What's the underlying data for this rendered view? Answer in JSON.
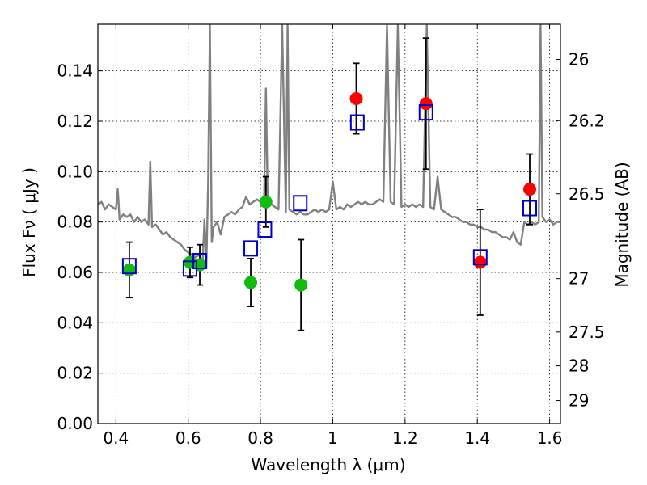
{
  "chart_data": {
    "type": "scatter",
    "title": "",
    "xlabel": "Wavelength  λ (μm)",
    "ylabel": "Flux  Fν  ( μJy )",
    "ylabel_right": "Magnitude (AB)",
    "xlim": [
      0.35,
      1.63
    ],
    "ylim": [
      0.0,
      0.1585
    ],
    "grid": true,
    "x_ticks": [
      0.4,
      0.6,
      0.8,
      1.0,
      1.2,
      1.4,
      1.6
    ],
    "x_tick_labels": [
      "0.4",
      "0.6",
      "0.8",
      "1",
      "1.2",
      "1.4",
      "1.6"
    ],
    "y_ticks": [
      0.0,
      0.02,
      0.04,
      0.06,
      0.08,
      0.1,
      0.12,
      0.14
    ],
    "y_tick_labels": [
      "0.00",
      "0.02",
      "0.04",
      "0.06",
      "0.08",
      "0.10",
      "0.12",
      "0.14"
    ],
    "right_ticks": [
      26,
      26.2,
      26.5,
      27,
      27.5,
      28,
      29
    ],
    "right_tick_labels": [
      "26",
      "26.2",
      "26.5",
      "27",
      "27.5",
      "28",
      "29"
    ],
    "colors": {
      "template": "#808080",
      "optical": "#11bb11",
      "infrared": "#ff0000",
      "model": "#0000cc",
      "errorbar": "#000000"
    },
    "series": [
      {
        "kind": "line",
        "x": [
          0.35,
          0.36,
          0.37,
          0.38,
          0.39,
          0.4,
          0.405,
          0.41,
          0.42,
          0.43,
          0.44,
          0.45,
          0.46,
          0.47,
          0.48,
          0.49,
          0.495,
          0.5,
          0.51,
          0.52,
          0.53,
          0.54,
          0.55,
          0.56,
          0.57,
          0.58,
          0.59,
          0.6,
          0.61,
          0.62,
          0.63,
          0.64,
          0.645,
          0.65,
          0.655,
          0.66,
          0.665,
          0.67,
          0.68,
          0.69,
          0.7,
          0.71,
          0.72,
          0.73,
          0.74,
          0.75,
          0.76,
          0.77,
          0.78,
          0.79,
          0.8,
          0.81,
          0.815,
          0.82,
          0.83,
          0.84,
          0.85,
          0.86,
          0.87,
          0.875,
          0.88,
          0.89,
          0.9,
          0.91,
          0.92,
          0.93,
          0.94,
          0.95,
          0.96,
          0.97,
          0.98,
          0.99,
          1.0,
          1.01,
          1.02,
          1.03,
          1.04,
          1.05,
          1.06,
          1.07,
          1.08,
          1.09,
          1.1,
          1.11,
          1.12,
          1.13,
          1.14,
          1.15,
          1.16,
          1.17,
          1.18,
          1.19,
          1.2,
          1.21,
          1.22,
          1.23,
          1.24,
          1.25,
          1.26,
          1.27,
          1.28,
          1.29,
          1.3,
          1.31,
          1.32,
          1.33,
          1.34,
          1.35,
          1.36,
          1.37,
          1.38,
          1.39,
          1.4,
          1.41,
          1.42,
          1.43,
          1.44,
          1.45,
          1.46,
          1.47,
          1.48,
          1.49,
          1.5,
          1.51,
          1.52,
          1.53,
          1.54,
          1.55,
          1.56,
          1.57,
          1.575,
          1.58,
          1.59,
          1.6,
          1.61,
          1.62,
          1.63
        ],
        "y": [
          0.087,
          0.088,
          0.085,
          0.087,
          0.086,
          0.085,
          0.093,
          0.081,
          0.083,
          0.082,
          0.083,
          0.08,
          0.082,
          0.08,
          0.081,
          0.079,
          0.104,
          0.078,
          0.079,
          0.077,
          0.075,
          0.076,
          0.074,
          0.073,
          0.072,
          0.071,
          0.069,
          0.068,
          0.067,
          0.066,
          0.067,
          0.064,
          0.081,
          0.062,
          0.095,
          0.158,
          0.072,
          0.078,
          0.08,
          0.075,
          0.082,
          0.083,
          0.084,
          0.083,
          0.085,
          0.086,
          0.09,
          0.087,
          0.088,
          0.089,
          0.088,
          0.089,
          0.133,
          0.089,
          0.087,
          0.086,
          0.085,
          0.158,
          0.084,
          0.158,
          0.085,
          0.084,
          0.083,
          0.084,
          0.083,
          0.083,
          0.084,
          0.085,
          0.084,
          0.085,
          0.084,
          0.085,
          0.096,
          0.085,
          0.086,
          0.085,
          0.087,
          0.086,
          0.087,
          0.088,
          0.087,
          0.088,
          0.087,
          0.087,
          0.088,
          0.089,
          0.088,
          0.158,
          0.088,
          0.087,
          0.158,
          0.086,
          0.087,
          0.086,
          0.087,
          0.086,
          0.087,
          0.086,
          0.158,
          0.086,
          0.085,
          0.098,
          0.085,
          0.084,
          0.083,
          0.082,
          0.082,
          0.081,
          0.08,
          0.08,
          0.079,
          0.079,
          0.078,
          0.078,
          0.077,
          0.077,
          0.076,
          0.076,
          0.075,
          0.074,
          0.074,
          0.073,
          0.076,
          0.072,
          0.071,
          0.08,
          0.079,
          0.08,
          0.079,
          0.08,
          0.158,
          0.082,
          0.08,
          0.081,
          0.079,
          0.08,
          0.08
        ]
      },
      {
        "kind": "points",
        "marker": "circle",
        "color": "#11bb11",
        "x": [
          0.437,
          0.605,
          0.632,
          0.773,
          0.815,
          0.912
        ],
        "y": [
          0.061,
          0.064,
          0.063,
          0.056,
          0.088,
          0.055
        ],
        "err": [
          0.011,
          0.006,
          0.008,
          0.0095,
          0.01,
          0.018
        ]
      },
      {
        "kind": "points",
        "marker": "circle",
        "color": "#ff0000",
        "x": [
          1.065,
          1.258,
          1.408,
          1.545
        ],
        "y": [
          0.129,
          0.127,
          0.064,
          0.093
        ],
        "err": [
          0.014,
          0.026,
          0.021,
          0.014
        ]
      },
      {
        "kind": "points",
        "marker": "square",
        "color": "#0000cc",
        "x": [
          0.437,
          0.605,
          0.632,
          0.773,
          0.812,
          0.91,
          1.068,
          1.258,
          1.408,
          1.545
        ],
        "y": [
          0.0625,
          0.0615,
          0.0645,
          0.0695,
          0.077,
          0.0875,
          0.1195,
          0.1235,
          0.066,
          0.0855
        ]
      }
    ]
  }
}
